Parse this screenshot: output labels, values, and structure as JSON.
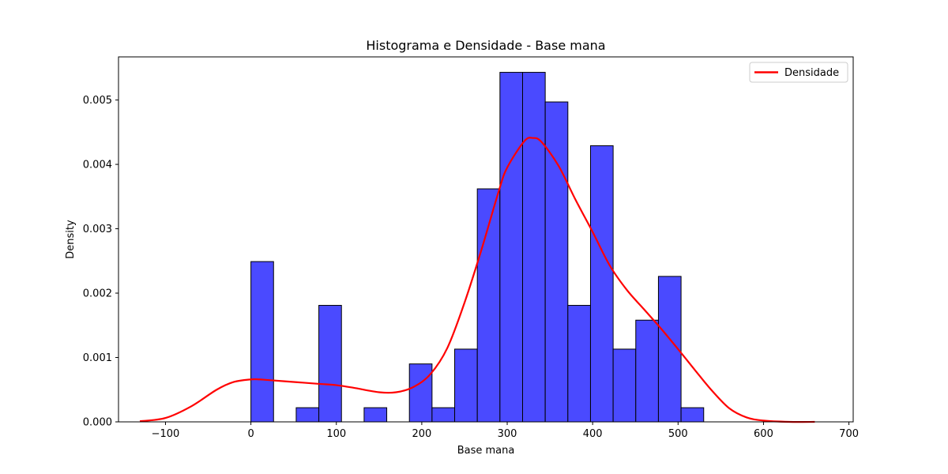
{
  "chart_data": {
    "type": "bar",
    "title": "Histograma e Densidade - Base mana",
    "xlabel": "Base mana",
    "ylabel": "Density",
    "xlim": [
      -155,
      705
    ],
    "ylim": [
      0,
      0.00567
    ],
    "xticks": [
      -100,
      0,
      100,
      200,
      300,
      400,
      500,
      600,
      700
    ],
    "xtick_labels": [
      "−100",
      "0",
      "100",
      "200",
      "300",
      "400",
      "500",
      "600",
      "700"
    ],
    "yticks": [
      0.0,
      0.001,
      0.002,
      0.003,
      0.004,
      0.005
    ],
    "ytick_labels": [
      "0.000",
      "0.001",
      "0.002",
      "0.003",
      "0.004",
      "0.005"
    ],
    "grid": false,
    "legend": {
      "placement": "top-right",
      "entries": [
        {
          "name": "Densidade",
          "color": "#ff0000"
        }
      ]
    },
    "histogram": {
      "color": "#4a4aff",
      "edge_color": "#000000",
      "bin_edges": [
        0,
        26.5,
        53,
        79.5,
        106,
        132.5,
        159,
        185.5,
        212,
        238.5,
        265,
        291.5,
        318,
        344.5,
        371,
        397.5,
        424,
        450.5,
        477,
        503.5,
        530
      ],
      "values": [
        0.00249,
        0,
        0.00022,
        0.00181,
        0,
        0.00022,
        0,
        0.0009,
        0.00022,
        0.00113,
        0.00362,
        0.00543,
        0.00543,
        0.00497,
        0.00181,
        0.00429,
        0.00113,
        0.00158,
        0.00226,
        0.00022
      ]
    },
    "series": [
      {
        "name": "Densidade",
        "type": "line",
        "color": "#ff0000",
        "x": [
          -130,
          -100,
          -70,
          -40,
          -20,
          0,
          10,
          20,
          50,
          80,
          100,
          120,
          150,
          170,
          190,
          210,
          230,
          250,
          270,
          290,
          300,
          320,
          330,
          340,
          360,
          380,
          400,
          420,
          440,
          460,
          480,
          500,
          520,
          540,
          560,
          580,
          600,
          630,
          660
        ],
        "y": [
          1e-05,
          6e-05,
          0.00024,
          0.0005,
          0.00062,
          0.00066,
          0.00066,
          0.00065,
          0.00062,
          0.00059,
          0.00057,
          0.00053,
          0.00046,
          0.00046,
          0.00054,
          0.00074,
          0.00115,
          0.00185,
          0.00268,
          0.00358,
          0.00395,
          0.00436,
          0.00441,
          0.00435,
          0.00398,
          0.00345,
          0.00295,
          0.00243,
          0.00205,
          0.00175,
          0.00145,
          0.00113,
          0.0008,
          0.00048,
          0.00021,
          7e-05,
          2e-05,
          0.0,
          0.0
        ]
      }
    ]
  }
}
